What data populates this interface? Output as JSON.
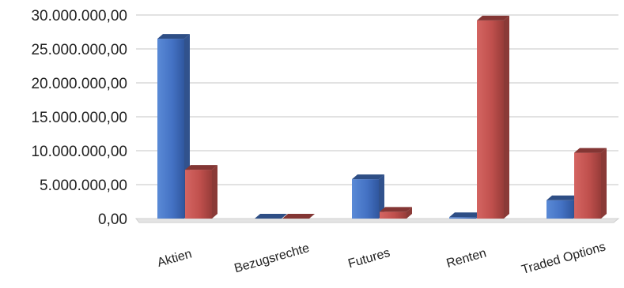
{
  "chart_data": {
    "type": "bar",
    "categories": [
      "Aktien",
      "Bezugsrechte",
      "Futures",
      "Renten",
      "Traded Options"
    ],
    "series": [
      {
        "values": [
          26500000,
          0,
          5800000,
          200000,
          2700000
        ],
        "color": "#4472C4"
      },
      {
        "values": [
          7200000,
          0,
          1000000,
          29200000,
          9700000
        ],
        "color": "#C0504D"
      }
    ],
    "y_ticks": [
      "0,00",
      "5.000.000,00",
      "10.000.000,00",
      "15.000.000,00",
      "20.000.000,00",
      "25.000.000,00",
      "30.000.000,00"
    ],
    "ylim": [
      0,
      30000000
    ],
    "grid": true,
    "legend": "none"
  }
}
